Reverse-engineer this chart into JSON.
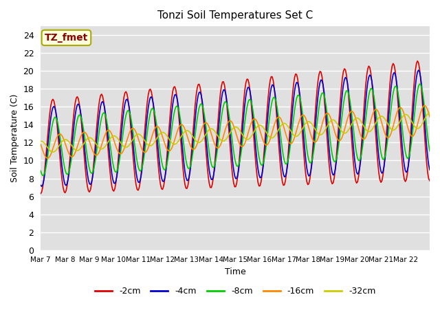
{
  "title": "Tonzi Soil Temperatures Set C",
  "xlabel": "Time",
  "ylabel": "Soil Temperature (C)",
  "ylim": [
    0,
    25
  ],
  "yticks": [
    0,
    2,
    4,
    6,
    8,
    10,
    12,
    14,
    16,
    18,
    20,
    22,
    24
  ],
  "background_color": "#e0e0e0",
  "annotation_text": "TZ_fmet",
  "annotation_color": "#8b0000",
  "annotation_bg": "#ffffe0",
  "series_colors": {
    "-2cm": "#dd0000",
    "-4cm": "#0000cc",
    "-8cm": "#00cc00",
    "-16cm": "#ff8800",
    "-32cm": "#cccc00"
  },
  "x_tick_labels": [
    "Mar 7",
    "Mar 8",
    "Mar 9",
    "Mar 10",
    "Mar 11",
    "Mar 12",
    "Mar 13",
    "Mar 14",
    "Mar 15",
    "Mar 16",
    "Mar 17",
    "Mar 18",
    "Mar 19",
    "Mar 20",
    "Mar 21",
    "Mar 22"
  ],
  "n_days": 16
}
